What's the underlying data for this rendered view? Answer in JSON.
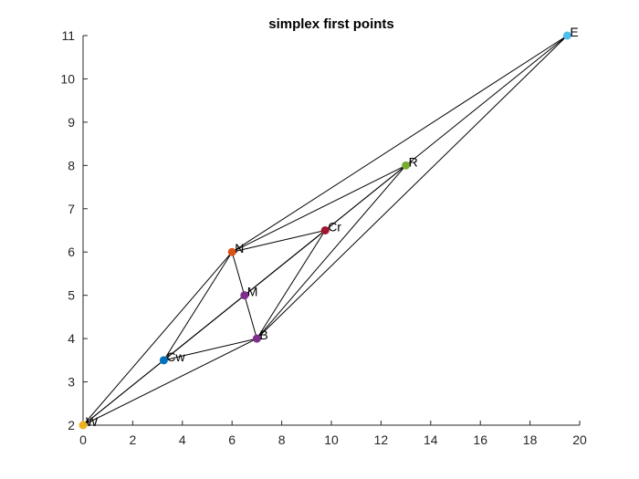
{
  "chart_data": {
    "type": "scatter",
    "title": "simplex first points",
    "xlabel": "",
    "ylabel": "",
    "xlim": [
      0,
      20
    ],
    "ylim": [
      2,
      11
    ],
    "xticks": [
      "0",
      "2",
      "4",
      "6",
      "8",
      "10",
      "12",
      "14",
      "16",
      "18",
      "20"
    ],
    "yticks": [
      "2",
      "3",
      "4",
      "5",
      "6",
      "7",
      "8",
      "9",
      "10",
      "11"
    ],
    "grid": false,
    "points": [
      {
        "label": "W",
        "x": 0,
        "y": 2,
        "color": "#EDB120"
      },
      {
        "label": "Cw",
        "x": 3.25,
        "y": 3.5,
        "color": "#0072BD"
      },
      {
        "label": "B",
        "x": 7,
        "y": 4,
        "color": "#7E2F8E"
      },
      {
        "label": "M",
        "x": 6.5,
        "y": 5,
        "color": "#7E2F8E"
      },
      {
        "label": "N",
        "x": 6,
        "y": 6,
        "color": "#D95319"
      },
      {
        "label": "Cr",
        "x": 9.75,
        "y": 6.5,
        "color": "#A2142F"
      },
      {
        "label": "R",
        "x": 13,
        "y": 8,
        "color": "#77AC30"
      },
      {
        "label": "E",
        "x": 19.5,
        "y": 11,
        "color": "#4DBEEE"
      }
    ],
    "segments": [
      [
        "W",
        "N"
      ],
      [
        "W",
        "B"
      ],
      [
        "N",
        "B"
      ],
      [
        "W",
        "E"
      ],
      [
        "N",
        "E"
      ],
      [
        "B",
        "E"
      ],
      [
        "W",
        "R"
      ],
      [
        "N",
        "R"
      ],
      [
        "B",
        "R"
      ],
      [
        "Cw",
        "N"
      ],
      [
        "Cw",
        "B"
      ],
      [
        "Cw",
        "Cr"
      ],
      [
        "N",
        "Cr"
      ],
      [
        "B",
        "Cr"
      ]
    ]
  }
}
